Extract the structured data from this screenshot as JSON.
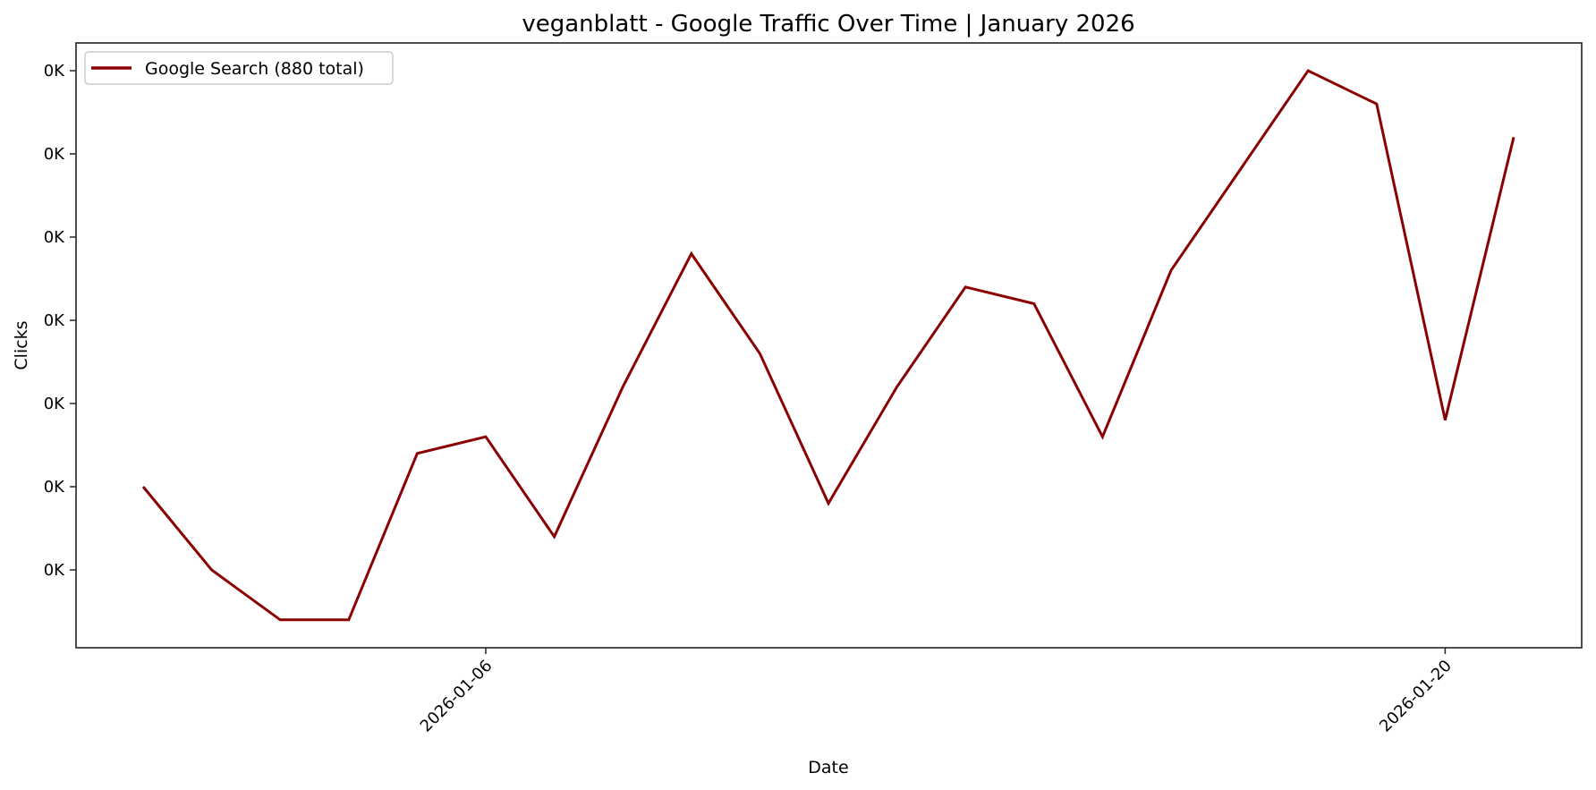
{
  "chart_data": {
    "type": "line",
    "title": "veganblatt - Google Traffic Over Time | January 2026",
    "xlabel": "Date",
    "ylabel": "Clicks",
    "x": [
      "2026-01-01",
      "2026-01-02",
      "2026-01-03",
      "2026-01-04",
      "2026-01-05",
      "2026-01-06",
      "2026-01-07",
      "2026-01-08",
      "2026-01-09",
      "2026-01-10",
      "2026-01-11",
      "2026-01-12",
      "2026-01-13",
      "2026-01-14",
      "2026-01-15",
      "2026-01-16",
      "2026-01-17",
      "2026-01-18",
      "2026-01-19",
      "2026-01-20",
      "2026-01-21"
    ],
    "series": [
      {
        "name": "Google Search (880 total)",
        "color": "#8b0000",
        "values": [
          35,
          30,
          27,
          27,
          37,
          38,
          32,
          41,
          49,
          43,
          34,
          41,
          47,
          46,
          38,
          48,
          54,
          60,
          58,
          39,
          56
        ]
      }
    ],
    "x_ticks": [
      {
        "label": "2026-01-06",
        "index": 5
      },
      {
        "label": "2026-01-20",
        "index": 19
      }
    ],
    "y_ticks": [
      {
        "value": 30,
        "label": "0K"
      },
      {
        "value": 35,
        "label": "0K"
      },
      {
        "value": 40,
        "label": "0K"
      },
      {
        "value": 45,
        "label": "0K"
      },
      {
        "value": 50,
        "label": "0K"
      },
      {
        "value": 55,
        "label": "0K"
      },
      {
        "value": 60,
        "label": "0K"
      }
    ],
    "ylim": [
      25.4,
      61.4
    ],
    "grid": false,
    "legend_position": "upper left"
  }
}
